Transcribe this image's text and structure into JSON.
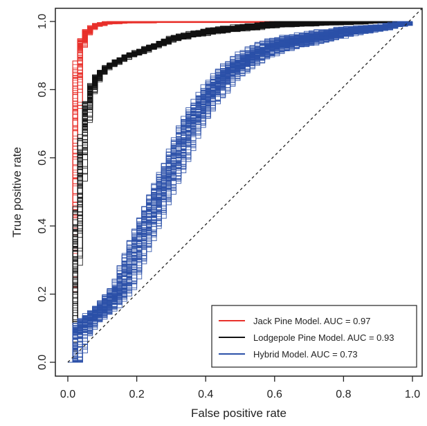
{
  "chart_data": {
    "type": "line",
    "title": "",
    "xlabel": "False positive rate",
    "ylabel": "True positive rate",
    "xlim": [
      0,
      1
    ],
    "ylim": [
      0,
      1
    ],
    "x_ticks": [
      "0.0",
      "0.2",
      "0.4",
      "0.6",
      "0.8",
      "1.0"
    ],
    "y_ticks": [
      "0.0",
      "0.2",
      "0.4",
      "0.6",
      "0.8",
      "1.0"
    ],
    "grid": false,
    "legend_position": "bottom-right",
    "reference_line": {
      "style": "dashed",
      "x": [
        0,
        1
      ],
      "y": [
        0,
        1
      ]
    },
    "series": [
      {
        "name": "Jack Pine Model. AUC = 0.97",
        "color": "#e8302a",
        "replicates": 100,
        "x": [
          0,
          0.005,
          0.01,
          0.015,
          0.02,
          0.025,
          0.03,
          0.04,
          0.05,
          0.06,
          0.08,
          0.1,
          0.15,
          0.3,
          0.5,
          1.0
        ],
        "y": [
          0,
          0.3,
          0.5,
          0.68,
          0.8,
          0.87,
          0.92,
          0.95,
          0.97,
          0.98,
          0.99,
          0.995,
          0.998,
          1.0,
          1.0,
          1.0
        ]
      },
      {
        "name": "Lodgepole Pine Model. AUC = 0.93",
        "color": "#111111",
        "replicates": 100,
        "x": [
          0,
          0.01,
          0.02,
          0.03,
          0.04,
          0.05,
          0.06,
          0.08,
          0.1,
          0.13,
          0.17,
          0.2,
          0.25,
          0.3,
          0.4,
          0.5,
          0.6,
          0.8,
          1.0
        ],
        "y": [
          0,
          0.2,
          0.38,
          0.55,
          0.68,
          0.75,
          0.8,
          0.84,
          0.86,
          0.88,
          0.9,
          0.91,
          0.93,
          0.95,
          0.97,
          0.98,
          0.99,
          0.995,
          1.0
        ]
      },
      {
        "name": "Hybrid Model. AUC = 0.73",
        "color": "#2b50a8",
        "replicates": 100,
        "x": [
          0,
          0.02,
          0.05,
          0.1,
          0.15,
          0.2,
          0.25,
          0.3,
          0.35,
          0.4,
          0.45,
          0.5,
          0.55,
          0.6,
          0.7,
          0.8,
          0.9,
          1.0
        ],
        "y": [
          0,
          0.08,
          0.12,
          0.16,
          0.22,
          0.35,
          0.47,
          0.58,
          0.7,
          0.78,
          0.84,
          0.88,
          0.91,
          0.93,
          0.95,
          0.97,
          0.98,
          1.0
        ]
      }
    ]
  }
}
